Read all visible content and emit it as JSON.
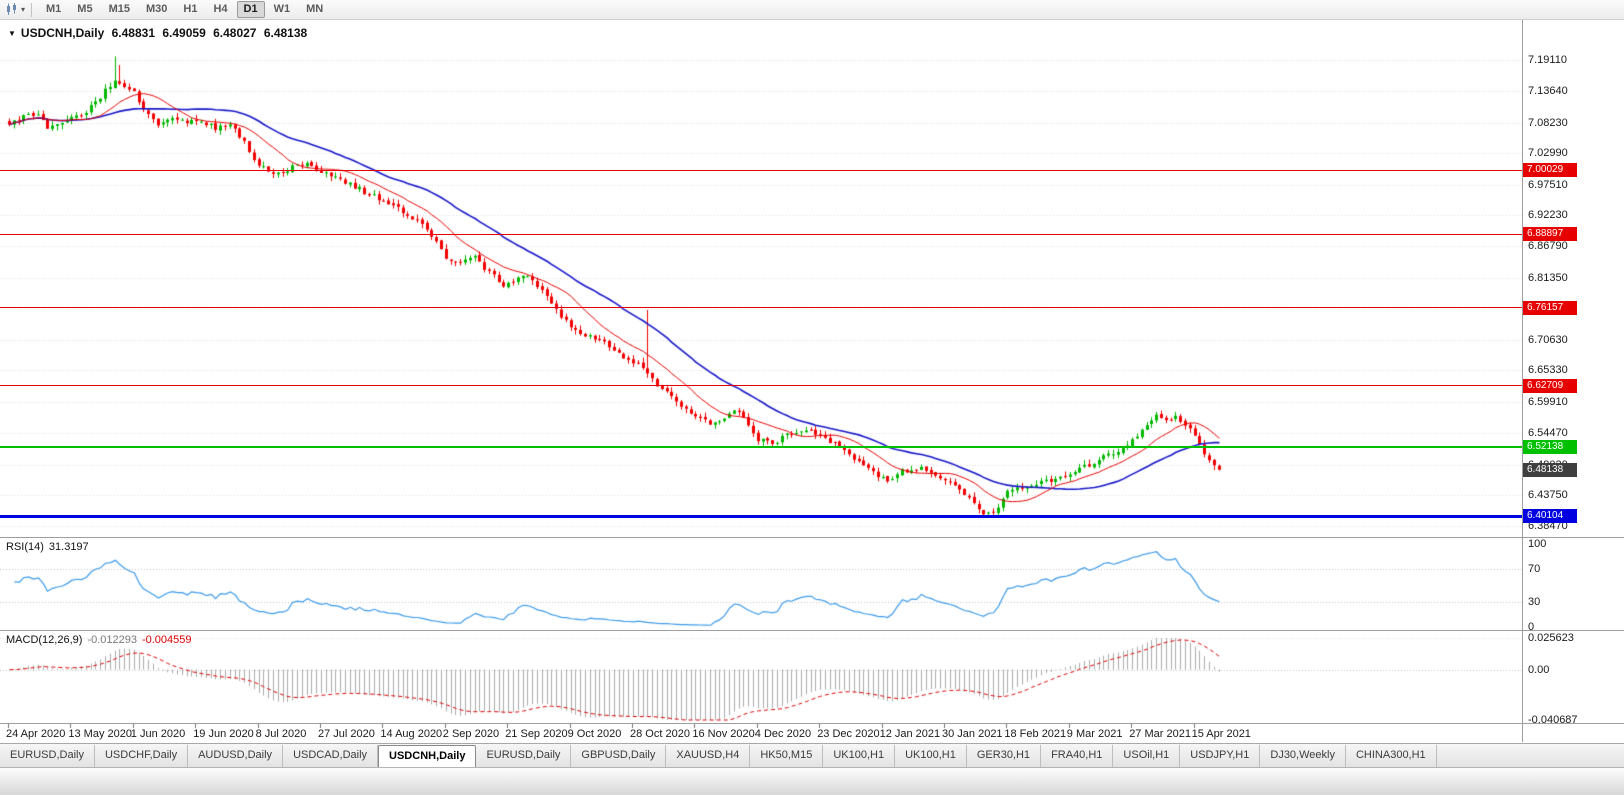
{
  "toolbar": {
    "timeframes": [
      "M1",
      "M5",
      "M15",
      "M30",
      "H1",
      "H4",
      "D1",
      "W1",
      "MN"
    ],
    "active_timeframe": "D1"
  },
  "icons": {
    "collapse": "▼",
    "dropdown": "▾",
    "chart_type": "candlestick-chart"
  },
  "chart_header": {
    "title": "USDCNH,Daily",
    "open": "6.48831",
    "high": "6.49059",
    "low": "6.48027",
    "close": "6.48138"
  },
  "price_axis": {
    "labels": [
      "7.19110",
      "7.13640",
      "7.08230",
      "7.02990",
      "6.97510",
      "6.92230",
      "6.86790",
      "6.81350",
      "6.76030",
      "6.70630",
      "6.65330",
      "6.59910",
      "6.54470",
      "6.49030",
      "6.43750",
      "6.38470"
    ]
  },
  "price_lines": [
    {
      "value": "7.00029",
      "price": 7.00029,
      "color": "#e60000",
      "thickness": 1
    },
    {
      "value": "6.88897",
      "price": 6.88897,
      "color": "#e60000",
      "thickness": 1
    },
    {
      "value": "6.76157",
      "price": 6.76157,
      "color": "#e60000",
      "thickness": 1
    },
    {
      "value": "6.62709",
      "price": 6.62709,
      "color": "#e60000",
      "thickness": 1
    },
    {
      "value": "6.52138",
      "price": 6.52138,
      "color": "#00c000",
      "thickness": 2
    },
    {
      "value": "6.40104",
      "price": 6.40104,
      "color": "#0000e0",
      "thickness": 3
    }
  ],
  "current_price_tag": {
    "value": "6.48138",
    "bg": "#3f3f3f"
  },
  "rsi_panel": {
    "label": "RSI(14)",
    "value": "31.3197",
    "axis_labels": [
      "100",
      "70",
      "30",
      "0"
    ],
    "levels": [
      70,
      30
    ],
    "line_color": "#3e9be9"
  },
  "macd_panel": {
    "label": "MACD(12,26,9)",
    "macd_value": "-0.012293",
    "signal_value": "-0.004559",
    "axis_labels": [
      "0.025623",
      "0.00",
      "-0.040687"
    ],
    "histogram_color": "#ababab",
    "signal_color": "#dd0000"
  },
  "date_axis": {
    "labels": [
      "24 Apr 2020",
      "13 May 2020",
      "1 Jun 2020",
      "19 Jun 2020",
      "8 Jul 2020",
      "27 Jul 2020",
      "14 Aug 2020",
      "2 Sep 2020",
      "21 Sep 2020",
      "9 Oct 2020",
      "28 Oct 2020",
      "16 Nov 2020",
      "4 Dec 2020",
      "23 Dec 2020",
      "12 Jan 2021",
      "30 Jan 2021",
      "18 Feb 2021",
      "9 Mar 2021",
      "27 Mar 2021",
      "15 Apr 2021"
    ]
  },
  "tabs": {
    "items": [
      "EURUSD,Daily",
      "USDCHF,Daily",
      "AUDUSD,Daily",
      "USDCAD,Daily",
      "USDCNH,Daily",
      "EURUSD,Daily",
      "GBPUSD,Daily",
      "XAUUSD,H4",
      "HK50,M15",
      "UK100,H1",
      "UK100,H1",
      "GER30,H1",
      "FRA40,H1",
      "USOil,H1",
      "USDJPY,H1",
      "DJ30,Weekly",
      "CHINA300,H1"
    ],
    "active_index": 4
  },
  "chart_data": {
    "type": "candlestick",
    "symbol": "USDCNH",
    "timeframe": "Daily",
    "bars": 253,
    "bars_per_date_label": 13,
    "price_range": [
      6.365,
      7.26
    ],
    "rsi_range": [
      0,
      100
    ],
    "macd_range": [
      -0.040687,
      0.025623
    ],
    "horizontal_line_levels": [
      7.00029,
      6.88897,
      6.76157,
      6.62709,
      6.52138,
      6.40104
    ],
    "last_candle": {
      "o": 6.48831,
      "h": 6.49059,
      "l": 6.48027,
      "c": 6.48138
    },
    "close_anchors": [
      [
        0,
        7.082
      ],
      [
        3,
        7.094
      ],
      [
        6,
        7.1
      ],
      [
        8,
        7.075
      ],
      [
        11,
        7.083
      ],
      [
        13,
        7.088
      ],
      [
        16,
        7.102
      ],
      [
        19,
        7.128
      ],
      [
        22,
        7.158
      ],
      [
        24,
        7.148
      ],
      [
        26,
        7.133
      ],
      [
        28,
        7.103
      ],
      [
        31,
        7.079
      ],
      [
        34,
        7.089
      ],
      [
        37,
        7.081
      ],
      [
        40,
        7.086
      ],
      [
        43,
        7.073
      ],
      [
        46,
        7.079
      ],
      [
        49,
        7.047
      ],
      [
        52,
        7.009
      ],
      [
        55,
        6.994
      ],
      [
        58,
        7.001
      ],
      [
        61,
        7.011
      ],
      [
        64,
        7.003
      ],
      [
        67,
        6.991
      ],
      [
        70,
        6.979
      ],
      [
        73,
        6.967
      ],
      [
        76,
        6.954
      ],
      [
        79,
        6.944
      ],
      [
        82,
        6.929
      ],
      [
        85,
        6.913
      ],
      [
        88,
        6.889
      ],
      [
        91,
        6.846
      ],
      [
        94,
        6.841
      ],
      [
        97,
        6.849
      ],
      [
        100,
        6.823
      ],
      [
        103,
        6.801
      ],
      [
        106,
        6.812
      ],
      [
        108,
        6.819
      ],
      [
        110,
        6.801
      ],
      [
        112,
        6.783
      ],
      [
        114,
        6.758
      ],
      [
        117,
        6.728
      ],
      [
        120,
        6.713
      ],
      [
        123,
        6.706
      ],
      [
        126,
        6.689
      ],
      [
        129,
        6.671
      ],
      [
        131,
        6.663
      ],
      [
        134,
        6.637
      ],
      [
        137,
        6.613
      ],
      [
        140,
        6.591
      ],
      [
        143,
        6.577
      ],
      [
        146,
        6.563
      ],
      [
        149,
        6.569
      ],
      [
        151,
        6.584
      ],
      [
        153,
        6.571
      ],
      [
        156,
        6.534
      ],
      [
        159,
        6.528
      ],
      [
        162,
        6.541
      ],
      [
        164,
        6.549
      ],
      [
        167,
        6.545
      ],
      [
        169,
        6.54
      ],
      [
        172,
        6.528
      ],
      [
        175,
        6.508
      ],
      [
        178,
        6.491
      ],
      [
        181,
        6.469
      ],
      [
        183,
        6.461
      ],
      [
        186,
        6.478
      ],
      [
        189,
        6.484
      ],
      [
        192,
        6.48
      ],
      [
        195,
        6.464
      ],
      [
        198,
        6.449
      ],
      [
        200,
        6.433
      ],
      [
        202,
        6.413
      ],
      [
        204,
        6.404
      ],
      [
        206,
        6.414
      ],
      [
        208,
        6.446
      ],
      [
        211,
        6.452
      ],
      [
        214,
        6.458
      ],
      [
        217,
        6.463
      ],
      [
        220,
        6.473
      ],
      [
        223,
        6.484
      ],
      [
        226,
        6.491
      ],
      [
        229,
        6.508
      ],
      [
        232,
        6.518
      ],
      [
        235,
        6.536
      ],
      [
        237,
        6.557
      ],
      [
        239,
        6.573
      ],
      [
        241,
        6.569
      ],
      [
        243,
        6.575
      ],
      [
        245,
        6.561
      ],
      [
        247,
        6.539
      ],
      [
        249,
        6.509
      ],
      [
        251,
        6.492
      ],
      [
        252,
        6.48138
      ]
    ],
    "noise": 0.009,
    "wick": 0.0085,
    "seed": 20210420,
    "low_clamp": 6.398,
    "high_clamp": 7.205,
    "wick_events": [
      {
        "i": 22,
        "h": 7.197
      },
      {
        "i": 23,
        "h": 7.182
      },
      {
        "i": 133,
        "h": 6.758
      },
      {
        "i": 204,
        "l": 6.3995
      }
    ],
    "ma_fast": {
      "period": 12,
      "color": "#e60000"
    },
    "ma_slow": {
      "period": 30,
      "color": "#1717c8"
    },
    "rsi_period": 14,
    "macd": {
      "fast": 12,
      "slow": 26,
      "signal": 9
    },
    "up_color": "#00b800",
    "down_color": "#f20000"
  }
}
